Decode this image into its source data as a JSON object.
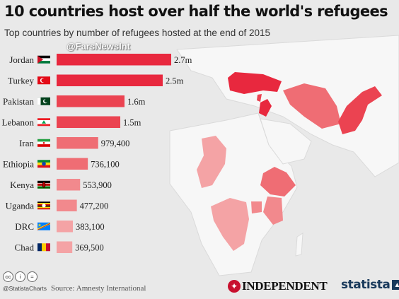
{
  "header": {
    "title": "10 countries host over half the world's refugees",
    "subtitle": "Top countries by number of refugees hosted at the end of 2015",
    "watermark": "@FarsNewsInt"
  },
  "chart_data": {
    "type": "bar",
    "orientation": "horizontal",
    "categories": [
      "Jordan",
      "Turkey",
      "Pakistan",
      "Lebanon",
      "Iran",
      "Ethiopia",
      "Kenya",
      "Uganda",
      "DRC",
      "Chad"
    ],
    "values": [
      2700000,
      2500000,
      1600000,
      1500000,
      979400,
      736100,
      553900,
      477200,
      383100,
      369500
    ],
    "value_labels": [
      "2.7m",
      "2.5m",
      "1.6m",
      "1.5m",
      "979,400",
      "736,100",
      "553,900",
      "477,200",
      "383,100",
      "369,500"
    ],
    "colors": [
      "#e8283e",
      "#e8283e",
      "#eb4351",
      "#eb4351",
      "#ef6d74",
      "#ef6d74",
      "#f2898d",
      "#f2898d",
      "#f4a3a5",
      "#f4a3a5"
    ],
    "title": "10 countries host over half the world's refugees",
    "subtitle": "Top countries by number of refugees hosted at the end of 2015",
    "xlabel": "",
    "ylabel": "",
    "xlim": [
      0,
      2700000
    ],
    "grid": false,
    "legend": "none"
  },
  "flags": [
    "jordan-flag-icon",
    "turkey-flag-icon",
    "pakistan-flag-icon",
    "lebanon-flag-icon",
    "iran-flag-icon",
    "ethiopia-flag-icon",
    "kenya-flag-icon",
    "uganda-flag-icon",
    "drc-flag-icon",
    "chad-flag-icon"
  ],
  "map": {
    "background": "#e9e9e9",
    "land_color": "#f7f7f7",
    "highlight_colors": [
      "#e8283e",
      "#eb4351",
      "#ef6d74",
      "#f2898d",
      "#f4a3a5"
    ]
  },
  "footer": {
    "license_icons": [
      "cc-icon",
      "by-icon",
      "equals-icon"
    ],
    "handle": "@StatistaCharts",
    "source": "Source: Amnesty International",
    "publisher": "INDEPENDENT",
    "brand": "statista"
  }
}
